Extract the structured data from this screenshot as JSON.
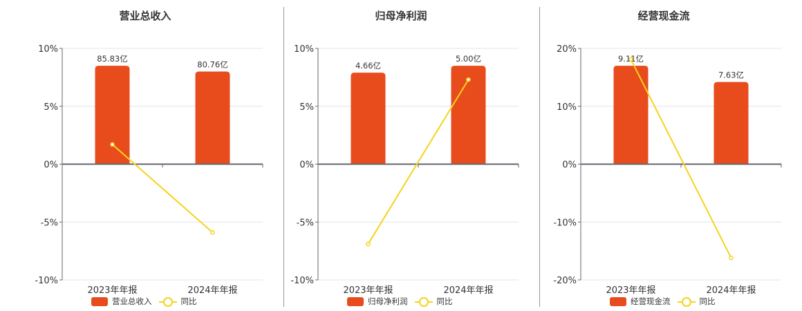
{
  "colors": {
    "bar": "#e84c1c",
    "line": "#f5d31c",
    "axis": "#666672",
    "grid": "#e0e4ee"
  },
  "chart_data": [
    {
      "type": "bar+line",
      "title": "营业总收入",
      "categories": [
        "2023年年报",
        "2024年年报"
      ],
      "yticks": [
        "10%",
        "5%",
        "0%",
        "-5%",
        "-10%"
      ],
      "ylim": [
        -10,
        10
      ],
      "series": [
        {
          "name": "营业总收入",
          "type": "bar",
          "labels": [
            "85.83亿",
            "80.76亿"
          ],
          "values_yi": [
            85.83,
            80.76
          ],
          "bar_axis_pct": [
            8.5,
            8.0
          ]
        },
        {
          "name": "同比",
          "type": "line",
          "values": [
            1.7,
            -5.9
          ]
        }
      ],
      "legend": [
        "营业总收入",
        "同比"
      ]
    },
    {
      "type": "bar+line",
      "title": "归母净利润",
      "categories": [
        "2023年年报",
        "2024年年报"
      ],
      "yticks": [
        "10%",
        "5%",
        "0%",
        "-5%",
        "-10%"
      ],
      "ylim": [
        -10,
        10
      ],
      "series": [
        {
          "name": "归母净利润",
          "type": "bar",
          "labels": [
            "4.66亿",
            "5.00亿"
          ],
          "values_yi": [
            4.66,
            5.0
          ],
          "bar_axis_pct": [
            7.9,
            8.5
          ]
        },
        {
          "name": "同比",
          "type": "line",
          "values": [
            -6.9,
            7.3
          ]
        }
      ],
      "legend": [
        "归母净利润",
        "同比"
      ]
    },
    {
      "type": "bar+line",
      "title": "经营现金流",
      "categories": [
        "2023年年报",
        "2024年年报"
      ],
      "yticks": [
        "20%",
        "10%",
        "0%",
        "-10%",
        "-20%"
      ],
      "ylim": [
        -20,
        20
      ],
      "series": [
        {
          "name": "经营现金流",
          "type": "bar",
          "labels": [
            "9.11亿",
            "7.63亿"
          ],
          "values_yi": [
            9.11,
            7.63
          ],
          "bar_axis_pct": [
            17.0,
            14.2
          ]
        },
        {
          "name": "同比",
          "type": "line",
          "values": [
            18.1,
            -16.2
          ]
        }
      ],
      "legend": [
        "经营现金流",
        "同比"
      ]
    }
  ]
}
